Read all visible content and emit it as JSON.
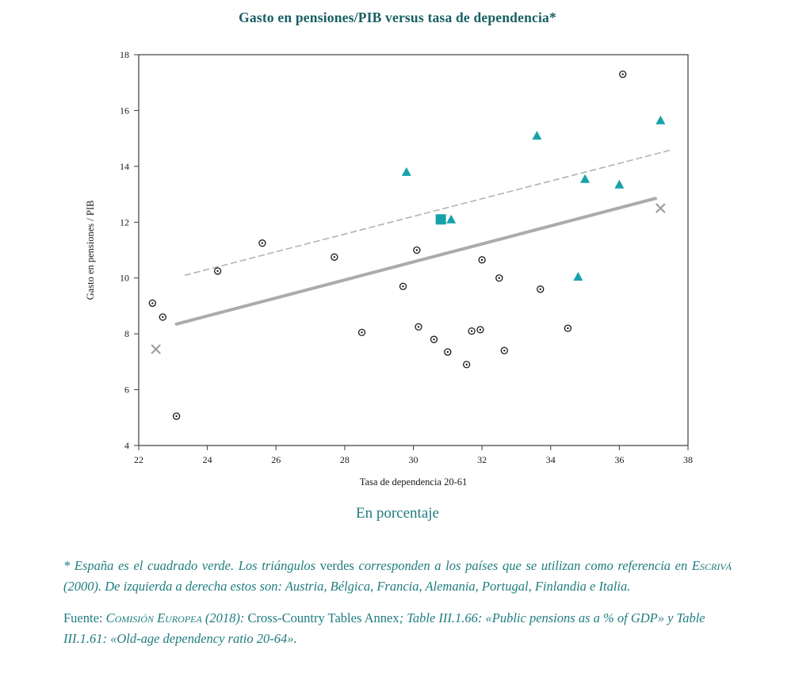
{
  "footnote": {
    "seg1": "* España es el cuadrado verde. Los triángulos ",
    "seg2": "verdes",
    "seg3": " corresponden a los países que se utilizan como referencia en ",
    "seg4": "Escrivá",
    "seg5": " (2000). De izquierda a derecha estos son: Austria, Bélgica, Francia, Alemania, Portugal, Finlandia e Italia."
  },
  "source": {
    "label": "Fuente: ",
    "org_smallcaps": "Comisión Europea (2018):",
    "plain": " Cross-Country Tables Annex",
    "italic_rest": "; Table III.1.66: «Public pensions as a % of GDP» y Table III.1.61: «Old-age dependency ratio 20-64»."
  },
  "chart_data": {
    "type": "scatter",
    "title": "Gasto en pensiones/PIB versus tasa de dependencia*",
    "xlabel": "Tasa de dependencia 20-61",
    "ylabel": "Gasto en pensiones / PIB",
    "units_caption": "En porcentaje",
    "xlim": [
      22,
      38
    ],
    "ylim": [
      4,
      18
    ],
    "x_ticks": [
      22,
      24,
      26,
      28,
      30,
      32,
      34,
      36,
      38
    ],
    "y_ticks": [
      4,
      6,
      8,
      10,
      12,
      14,
      16,
      18
    ],
    "grid": false,
    "legend": "none (identificación en nota al pie)",
    "series": [
      {
        "name": "Otros países (círculos)",
        "marker": "circle",
        "color": "#1a1a1a",
        "points": [
          [
            22.4,
            9.1
          ],
          [
            22.7,
            8.6
          ],
          [
            23.1,
            5.05
          ],
          [
            24.3,
            10.25
          ],
          [
            25.6,
            11.25
          ],
          [
            27.7,
            10.75
          ],
          [
            28.5,
            8.05
          ],
          [
            29.7,
            9.7
          ],
          [
            30.1,
            11.0
          ],
          [
            30.15,
            8.25
          ],
          [
            30.6,
            7.8
          ],
          [
            31.0,
            7.35
          ],
          [
            31.55,
            6.9
          ],
          [
            31.7,
            8.1
          ],
          [
            31.95,
            8.15
          ],
          [
            32.0,
            10.65
          ],
          [
            32.5,
            10.0
          ],
          [
            32.65,
            7.4
          ],
          [
            33.7,
            9.6
          ],
          [
            34.5,
            8.2
          ],
          [
            36.1,
            17.3
          ]
        ]
      },
      {
        "name": "Países de referencia Escrivá (2000): Austria, Bélgica, Francia, Alemania, Portugal, Finlandia, Italia",
        "marker": "triangle",
        "color": "#17a2aa",
        "points": [
          [
            29.8,
            13.8
          ],
          [
            31.1,
            12.1
          ],
          [
            33.6,
            15.1
          ],
          [
            34.8,
            10.05
          ],
          [
            35.0,
            13.55
          ],
          [
            36.0,
            13.35
          ],
          [
            37.2,
            15.65
          ]
        ]
      },
      {
        "name": "España",
        "marker": "square",
        "color": "#17a2aa",
        "points": [
          [
            30.8,
            12.1
          ]
        ]
      },
      {
        "name": "Marcadores ×",
        "marker": "x",
        "color": "#9f9f9f",
        "points": [
          [
            22.5,
            7.45
          ],
          [
            37.2,
            12.5
          ]
        ]
      }
    ],
    "trend_lines": [
      {
        "style": "solid",
        "color": "#ababab",
        "width": 4,
        "x1": 23.1,
        "y1": 8.35,
        "x2": 37.05,
        "y2": 12.85
      },
      {
        "style": "dashed",
        "color": "#b3b3b3",
        "width": 1.6,
        "x1": 23.35,
        "y1": 10.1,
        "x2": 37.55,
        "y2": 14.6
      }
    ]
  }
}
